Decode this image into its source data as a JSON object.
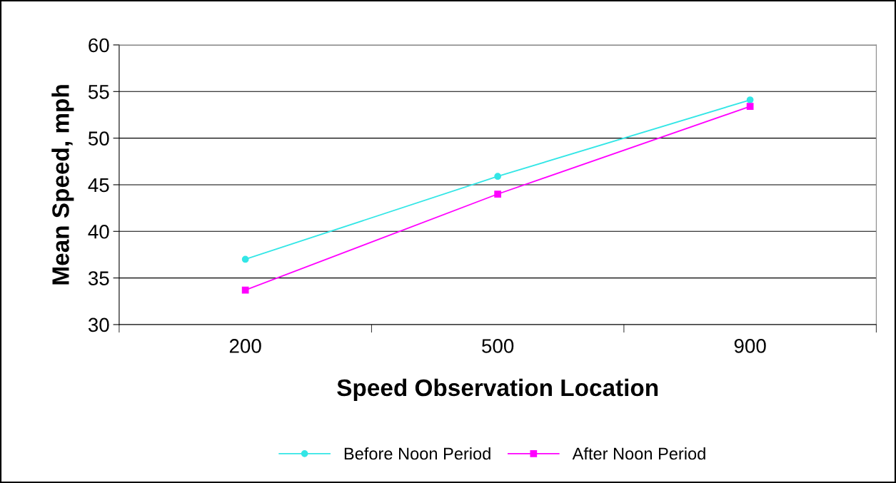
{
  "chart_data": {
    "type": "line",
    "xlabel": "Speed Observation Location",
    "ylabel": "Mean Speed, mph",
    "categories": [
      "200",
      "500",
      "900"
    ],
    "series": [
      {
        "name": "Before Noon Period",
        "color": "#33e6e6",
        "marker": "circle",
        "values": [
          37.0,
          45.9,
          54.1
        ]
      },
      {
        "name": "After Noon Period",
        "color": "#ff00ff",
        "marker": "square",
        "values": [
          33.7,
          44.0,
          53.4
        ]
      }
    ],
    "ylim": [
      30,
      60
    ],
    "yticks": [
      30,
      35,
      40,
      45,
      50,
      55,
      60
    ],
    "grid": "y",
    "legend": "bottom",
    "line_style": "solid"
  }
}
